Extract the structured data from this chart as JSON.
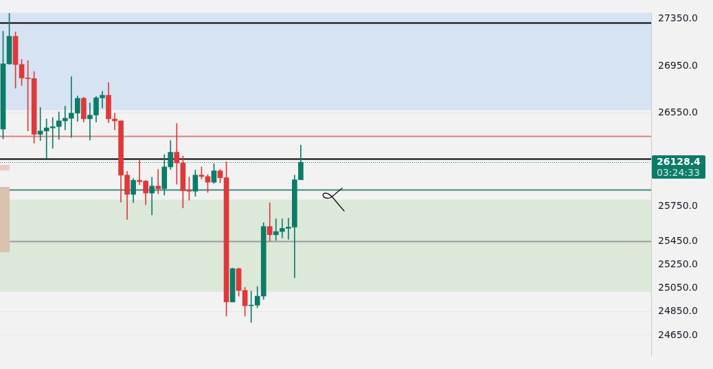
{
  "chart_data": {
    "type": "candlestick",
    "categories": [
      null,
      null,
      null,
      null,
      null,
      null,
      null,
      null,
      null,
      null,
      null,
      null,
      null,
      null,
      null,
      null,
      null,
      null,
      null,
      null,
      null,
      null,
      null,
      null,
      null,
      null,
      null,
      null,
      null,
      null,
      null,
      null,
      null,
      null,
      null,
      null,
      null,
      null,
      null,
      null,
      null,
      null,
      null,
      null,
      null,
      null,
      null,
      null,
      null,
      null,
      null,
      null,
      null,
      null,
      null,
      null,
      null,
      null,
      null,
      null,
      null,
      null,
      null,
      null,
      null,
      null,
      null,
      null,
      null,
      null,
      null,
      null,
      null,
      null,
      null,
      null,
      null,
      null,
      null,
      null,
      null,
      null,
      null,
      null,
      null,
      null,
      null,
      null,
      null,
      null,
      null,
      null,
      null,
      null,
      null,
      null,
      null,
      null,
      null,
      null,
      null,
      null,
      null,
      null,
      null
    ],
    "ohlc": [
      [
        26410,
        27246,
        26328,
        26968
      ],
      [
        26968,
        27400,
        26962,
        27203
      ],
      [
        27203,
        27241,
        26760,
        26962
      ],
      [
        26962,
        27006,
        26782,
        26847
      ],
      [
        26847,
        26995,
        26394,
        26842
      ],
      [
        26842,
        26902,
        26290,
        26366
      ],
      [
        26366,
        26596,
        26312,
        26394
      ],
      [
        26394,
        26498,
        26159,
        26421
      ],
      [
        26421,
        26509,
        26246,
        26432
      ],
      [
        26432,
        26558,
        26323,
        26481
      ],
      [
        26481,
        26607,
        26405,
        26503
      ],
      [
        26503,
        26858,
        26339,
        26547
      ],
      [
        26547,
        26694,
        26476,
        26673
      ],
      [
        26673,
        26683,
        26470,
        26498
      ],
      [
        26498,
        26634,
        26317,
        26530
      ],
      [
        26530,
        26689,
        26470,
        26678
      ],
      [
        26678,
        26733,
        26591,
        26700
      ],
      [
        26700,
        26809,
        26465,
        26498
      ],
      [
        26498,
        26547,
        26405,
        26481
      ],
      [
        26481,
        26481,
        25787,
        26017
      ],
      [
        26017,
        26049,
        25639,
        25853
      ],
      [
        25853,
        25989,
        25782,
        25973
      ],
      [
        25973,
        26142,
        25935,
        25962
      ],
      [
        25967,
        25973,
        25765,
        25864
      ],
      [
        25864,
        26000,
        25678,
        25924
      ],
      [
        25924,
        26066,
        25858,
        25902
      ],
      [
        25902,
        26192,
        25847,
        26088
      ],
      [
        26088,
        26312,
        26066,
        26213
      ],
      [
        26213,
        26459,
        25940,
        26121
      ],
      [
        26121,
        26181,
        25738,
        25885
      ],
      [
        25885,
        26000,
        25803,
        25880
      ],
      [
        25880,
        26060,
        25836,
        26017
      ],
      [
        26017,
        26088,
        25984,
        26006
      ],
      [
        26006,
        26022,
        25869,
        25957
      ],
      [
        25957,
        26115,
        25946,
        26055
      ],
      [
        26055,
        26066,
        25951,
        25995
      ],
      [
        25995,
        26131,
        24814,
        24934
      ],
      [
        24934,
        25224,
        24934,
        25219
      ],
      [
        25219,
        25224,
        24984,
        25033
      ],
      [
        25033,
        25060,
        24814,
        24902
      ],
      [
        24902,
        25027,
        24759,
        24907
      ],
      [
        24907,
        25066,
        24885,
        24984
      ],
      [
        24984,
        25612,
        24956,
        25579
      ],
      [
        25579,
        25782,
        25454,
        25508
      ],
      [
        25508,
        25645,
        25460,
        25536
      ],
      [
        25536,
        25645,
        25481,
        25563
      ],
      [
        25563,
        25650,
        25470,
        25574
      ],
      [
        25574,
        26017,
        25142,
        25978
      ],
      [
        25978,
        26274,
        25978,
        26128.4
      ],
      null,
      null,
      null,
      null,
      null,
      null,
      null,
      null,
      null,
      null,
      null,
      null,
      null,
      null,
      null,
      null,
      null,
      null,
      null,
      null,
      null,
      null,
      null,
      null,
      null,
      null,
      null,
      null,
      null,
      null,
      null,
      null,
      null,
      null,
      null,
      null,
      null,
      null,
      null,
      null,
      null,
      null,
      null,
      null,
      null,
      null,
      null,
      null,
      null,
      null,
      null,
      null,
      null,
      null,
      null,
      null
    ],
    "colors": [
      "#0c7c69",
      "#0c7c69",
      "#e03838",
      "#e03838",
      "#e03838",
      "#e03838",
      "#0c7c69",
      "#0c7c69",
      "#0c7c69",
      "#0c7c69",
      "#0c7c69",
      "#0c7c69",
      "#0c7c69",
      "#e03838",
      "#0c7c69",
      "#0c7c69",
      "#0c7c69",
      "#e03838",
      "#e03838",
      "#e03838",
      "#e03838",
      "#0c7c69",
      "#e03838",
      "#e03838",
      "#0c7c69",
      "#e03838",
      "#0c7c69",
      "#0c7c69",
      "#e03838",
      "#e03838",
      "#e03838",
      "#0c7c69",
      "#e03838",
      "#e03838",
      "#0c7c69",
      "#e03838",
      "#e03838",
      "#0c7c69",
      "#e03838",
      "#e03838",
      "#0c7c69",
      "#0c7c69",
      "#0c7c69",
      "#e03838",
      "#0c7c69",
      "#0c7c69",
      "#0c7c69",
      "#0c7c69",
      "#0c7c69",
      null,
      null,
      null,
      null,
      null,
      null,
      null,
      null,
      null,
      null,
      null,
      null,
      null,
      null,
      null,
      null,
      null,
      null,
      null,
      null,
      null,
      null,
      null,
      null,
      null,
      null,
      null,
      null,
      null,
      null,
      null,
      null,
      null,
      null,
      null,
      null,
      null,
      null,
      null,
      null,
      null,
      null,
      null,
      null,
      null,
      null,
      null,
      null,
      null,
      null,
      null,
      null,
      null,
      null,
      null,
      null
    ],
    "ylim": [
      24470,
      27405
    ],
    "yticks": [
      {
        "value": 24650,
        "label": "24650.0"
      },
      {
        "value": 24850,
        "label": "24850.0"
      },
      {
        "value": 25050,
        "label": "25050.0"
      },
      {
        "value": 25250,
        "label": "25250.0"
      },
      {
        "value": 25450,
        "label": "25450.0"
      },
      {
        "value": 25750,
        "label": "25750.0"
      },
      {
        "value": 26550,
        "label": "26550.0"
      },
      {
        "value": 26950,
        "label": "26950.0"
      },
      {
        "value": 27350,
        "label": "27350.0"
      }
    ],
    "bands": [
      {
        "axis": "y",
        "from": 26574,
        "to": 27405,
        "color": "#d6e3f3"
      },
      {
        "axis": "y",
        "from": 25022,
        "to": 25809,
        "color": "#dce8d8"
      }
    ],
    "ref_lines": [
      {
        "axis": "y",
        "value": 27320,
        "color": "#000000",
        "line_style": "solid"
      },
      {
        "axis": "y",
        "value": 26160,
        "color": "#000000",
        "line_style": "solid"
      },
      {
        "axis": "y",
        "value": 26350,
        "color": "#d98080",
        "line_style": "solid"
      },
      {
        "axis": "y",
        "value": 25891,
        "color": "#3d8a7a",
        "line_style": "solid"
      },
      {
        "axis": "y",
        "value": 25454,
        "color": "#9a9a9a",
        "line_style": "solid"
      },
      {
        "axis": "y",
        "value": 26128.4,
        "label": "26128.4",
        "color": "#0c7c69",
        "line_style": "dotted"
      }
    ],
    "annotations": [
      "03:24:33"
    ],
    "grid": "y",
    "tick_labels": "y"
  }
}
